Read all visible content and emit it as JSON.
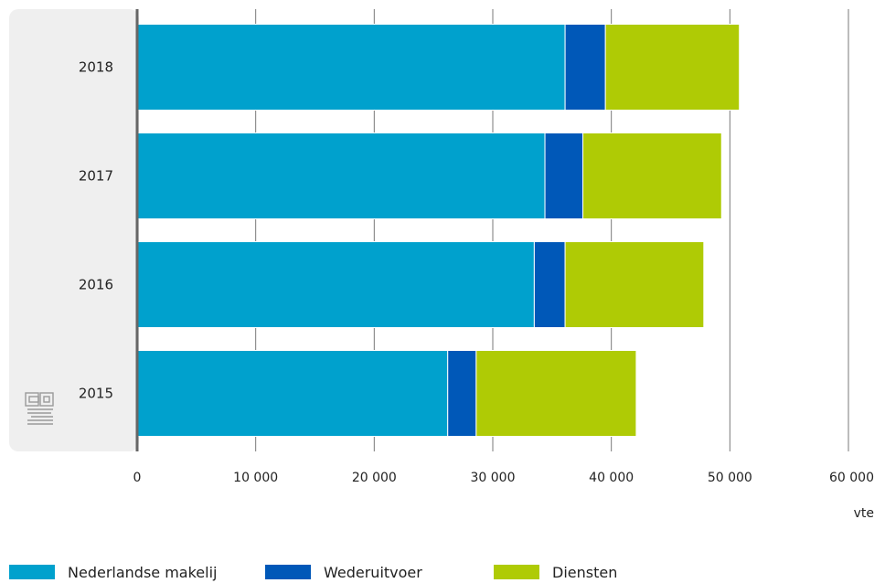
{
  "chart_data": {
    "type": "bar",
    "orientation": "horizontal",
    "stacked": true,
    "categories": [
      "2018",
      "2017",
      "2016",
      "2015"
    ],
    "series": [
      {
        "name": "Nederlandse makelij",
        "color": "#00a1cd",
        "values": [
          36100,
          34400,
          33500,
          26200
        ]
      },
      {
        "name": "Wederuitvoer",
        "color": "#0058b8",
        "values": [
          3400,
          3200,
          2600,
          2400
        ]
      },
      {
        "name": "Diensten",
        "color": "#afcb05",
        "values": [
          11300,
          11700,
          11700,
          13500
        ]
      }
    ],
    "xlim": [
      0,
      60000
    ],
    "xticks": [
      0,
      10000,
      20000,
      30000,
      40000,
      50000,
      60000
    ],
    "xtick_labels": [
      "0",
      "10 000",
      "20 000",
      "30 000",
      "40 000",
      "50 000",
      "60 000"
    ],
    "xlabel": "vte",
    "grid": true,
    "legend_position": "bottom"
  }
}
